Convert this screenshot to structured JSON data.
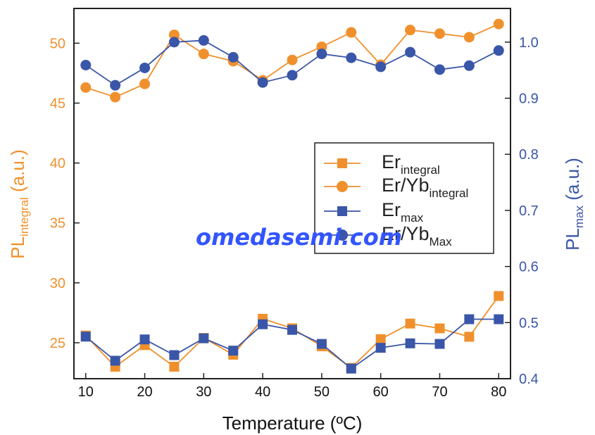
{
  "chart_data": {
    "type": "line",
    "xlabel": "Temperature (ºC)",
    "x": [
      10,
      15,
      20,
      25,
      30,
      35,
      40,
      45,
      50,
      55,
      60,
      65,
      70,
      75,
      80
    ],
    "xlim": [
      8,
      82
    ],
    "x_ticks": [
      "10",
      "20",
      "30",
      "40",
      "50",
      "60",
      "70",
      "80"
    ],
    "y_left": {
      "label_main": "PL",
      "label_sub": "integral",
      "label_unit": " (a.u.)",
      "ylim": [
        22,
        52.9
      ],
      "ticks": [
        "25",
        "30",
        "35",
        "40",
        "45",
        "50"
      ],
      "color": "#f0902c"
    },
    "y_right": {
      "label_main": "PL",
      "label_sub": "max",
      "label_unit": " (a.u.)",
      "ylim": [
        0.4,
        1.06
      ],
      "ticks": [
        "0.4",
        "0.5",
        "0.6",
        "0.7",
        "0.8",
        "0.9",
        "1.0"
      ],
      "color": "#3a56a8"
    },
    "series": [
      {
        "name_main": "Er",
        "name_sub": "integral",
        "axis": "left",
        "marker": "square",
        "color": "#f0902c",
        "values": [
          25.6,
          23.0,
          24.8,
          23.0,
          25.4,
          24.0,
          27.0,
          26.2,
          24.7,
          22.9,
          25.3,
          26.6,
          26.2,
          25.5,
          28.9
        ]
      },
      {
        "name_main": "Er/Yb",
        "name_sub": "integral",
        "axis": "left",
        "marker": "circle",
        "color": "#f0902c",
        "values": [
          46.3,
          45.5,
          46.6,
          50.7,
          49.1,
          48.5,
          46.9,
          48.6,
          49.7,
          50.9,
          48.2,
          51.1,
          50.8,
          50.5,
          51.6
        ]
      },
      {
        "name_main": "Er",
        "name_sub": "max",
        "axis": "right",
        "marker": "square",
        "color": "#3a56a8",
        "values": [
          0.475,
          0.432,
          0.47,
          0.442,
          0.472,
          0.45,
          0.497,
          0.487,
          0.462,
          0.418,
          0.455,
          0.463,
          0.462,
          0.506,
          0.506
        ]
      },
      {
        "name_main": "Er/Yb",
        "name_sub": "Max",
        "axis": "right",
        "marker": "circle",
        "color": "#3a56a8",
        "values": [
          0.959,
          0.923,
          0.954,
          1.0,
          1.003,
          0.973,
          0.928,
          0.941,
          0.979,
          0.972,
          0.956,
          0.982,
          0.951,
          0.958,
          0.985
        ]
      }
    ],
    "legend_position": "center-right",
    "grid": false
  },
  "watermark": "omedasemi.com"
}
